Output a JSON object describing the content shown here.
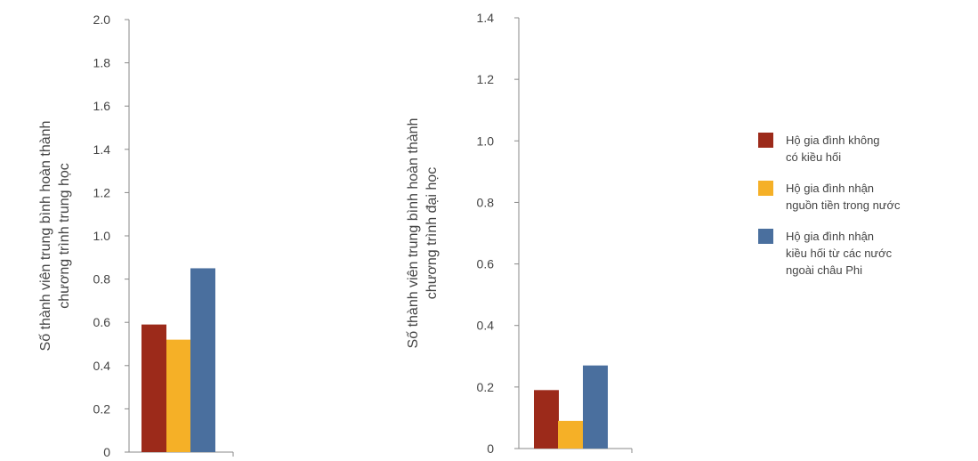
{
  "chart_data": [
    {
      "type": "bar",
      "ylabel": "Số thành viên trung bình hoàn thành\nchương trình trung học",
      "ylim": [
        0,
        2.0
      ],
      "yticks": [
        "0",
        "0.2",
        "0.4",
        "0.6",
        "0.8",
        "1.0",
        "1.2",
        "1.4",
        "1.6",
        "1.8",
        "2.0"
      ],
      "series": [
        {
          "name": "Hộ gia đình không có kiều hối",
          "values": [
            0.59
          ]
        },
        {
          "name": "Hộ gia đình nhận nguồn tiền trong nước",
          "values": [
            0.52
          ]
        },
        {
          "name": "Hộ gia đình nhận kiều hối từ các nước ngoài châu Phi",
          "values": [
            0.85
          ]
        }
      ]
    },
    {
      "type": "bar",
      "ylabel": "Số thành viên trung bình hoàn thành\nchương trình đại học",
      "ylim": [
        0,
        1.4
      ],
      "yticks": [
        "0",
        "0.2",
        "0.4",
        "0.6",
        "0.8",
        "1.0",
        "1.2",
        "1.4"
      ],
      "series": [
        {
          "name": "Hộ gia đình không có kiều hối",
          "values": [
            0.19
          ]
        },
        {
          "name": "Hộ gia đình nhận nguồn tiền trong nước",
          "values": [
            0.09
          ]
        },
        {
          "name": "Hộ gia đình nhận kiều hối từ các nước ngoài châu Phi",
          "values": [
            0.27
          ]
        }
      ]
    }
  ],
  "legend": [
    {
      "label": "Hộ gia đình không\ncó kiều hối",
      "color": "#9c2a1a"
    },
    {
      "label": "Hộ gia đình nhận\nnguồn tiền trong nước",
      "color": "#f5b027"
    },
    {
      "label": "Hộ gia đình nhận\nkiều hối từ các nước\nngoài châu Phi",
      "color": "#4a6f9e"
    }
  ]
}
